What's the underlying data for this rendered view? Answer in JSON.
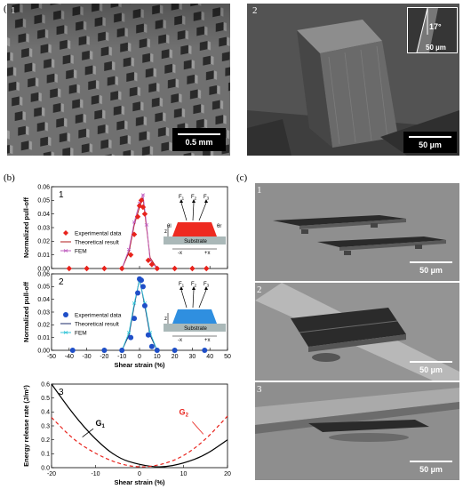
{
  "figure": {
    "panel_a_label": "(a)",
    "panel_b_label": "(b)",
    "panel_c_label": "(c)"
  },
  "panel_a": {
    "img1": {
      "number": "1",
      "scale": "0.5 mm"
    },
    "img2": {
      "number": "2",
      "scale": "50 µm",
      "inset_angle": "17°",
      "inset_scale": "50 µm"
    }
  },
  "panel_c": {
    "img1": {
      "number": "1",
      "scale": "50 µm"
    },
    "img2": {
      "number": "2",
      "scale": "50 µm"
    },
    "img3": {
      "number": "3",
      "scale": "50 µm"
    }
  },
  "chart_data": [
    {
      "type": "scatter",
      "panel": "b1",
      "number": "1",
      "ylabel": "Normalized pull-off",
      "xlim": [
        -50,
        50
      ],
      "ylim": [
        0.0,
        0.06
      ],
      "yticks": [
        "0.00",
        "0.01",
        "0.02",
        "0.03",
        "0.04",
        "0.05",
        "0.06"
      ],
      "series": [
        {
          "name": "Experimental data",
          "color": "#e8231c",
          "x": [
            -40,
            -30,
            -20,
            -10,
            -5,
            -3,
            -1,
            0,
            1,
            2,
            3,
            5,
            7,
            10,
            20,
            30,
            38
          ],
          "y": [
            0.0,
            0.0,
            0.0,
            0.0,
            0.01,
            0.025,
            0.038,
            0.046,
            0.05,
            0.045,
            0.04,
            0.006,
            0.003,
            0.0,
            0.0,
            0.0,
            0.0
          ]
        },
        {
          "name": "Theoretical result",
          "color": "#b01818",
          "x": [
            -10,
            -6,
            -3,
            0,
            2,
            4,
            6,
            10
          ],
          "y": [
            0.0,
            0.012,
            0.032,
            0.045,
            0.052,
            0.03,
            0.008,
            0.0
          ]
        },
        {
          "name": "FEM",
          "color": "#c060c0",
          "x": [
            -10,
            -6,
            -3,
            0,
            2,
            4,
            6,
            10
          ],
          "y": [
            0.0,
            0.014,
            0.034,
            0.048,
            0.054,
            0.032,
            0.006,
            0.0
          ]
        }
      ],
      "inset": {
        "forces": [
          "F1",
          "F2",
          "F3"
        ],
        "substrate": "Substrate",
        "z": "z",
        "neg_x": "-x",
        "pos_x": "+x",
        "theta_l": "θl",
        "theta_r": "θr"
      }
    },
    {
      "type": "scatter",
      "panel": "b2",
      "number": "2",
      "ylabel": "Normalized pull-off",
      "xlabel": "Shear strain (%)",
      "xlim": [
        -50,
        50
      ],
      "xticks": [
        "-50",
        "-40",
        "-30",
        "-20",
        "-10",
        "0",
        "10",
        "20",
        "30",
        "40",
        "50"
      ],
      "ylim": [
        0.0,
        0.06
      ],
      "yticks": [
        "0.00",
        "0.01",
        "0.02",
        "0.03",
        "0.04",
        "0.05",
        "0.06"
      ],
      "series": [
        {
          "name": "Experimental data",
          "color": "#1f4fc8",
          "x": [
            -38,
            -20,
            -10,
            -5,
            -3,
            -1,
            0,
            1,
            2,
            3,
            5,
            7,
            10,
            20,
            37
          ],
          "y": [
            0.0,
            0.0,
            0.0,
            0.01,
            0.025,
            0.045,
            0.056,
            0.055,
            0.05,
            0.035,
            0.012,
            0.003,
            0.0,
            0.0,
            0.0
          ]
        },
        {
          "name": "Theoretical result",
          "color": "#1a2a6a",
          "x": [
            -10,
            -6,
            -3,
            0,
            3,
            6,
            10
          ],
          "y": [
            0.0,
            0.012,
            0.035,
            0.056,
            0.035,
            0.012,
            0.0
          ]
        },
        {
          "name": "FEM",
          "color": "#35c6d8",
          "x": [
            -10,
            -6,
            -3,
            0,
            3,
            6,
            10
          ],
          "y": [
            0.0,
            0.014,
            0.037,
            0.055,
            0.037,
            0.014,
            0.0
          ]
        }
      ],
      "inset": {
        "forces": [
          "F1",
          "F2",
          "F3"
        ],
        "substrate": "Substrate",
        "z": "z",
        "neg_x": "-x",
        "pos_x": "+x"
      }
    },
    {
      "type": "line",
      "panel": "b3",
      "number": "3",
      "ylabel": "Energy release rate (J/m²)",
      "xlabel": "Shear strain (%)",
      "xlim": [
        -20,
        20
      ],
      "xticks": [
        "-20",
        "-10",
        "0",
        "10",
        "20"
      ],
      "ylim": [
        0.0,
        0.6
      ],
      "yticks": [
        "0.0",
        "0.1",
        "0.2",
        "0.3",
        "0.4",
        "0.5",
        "0.6"
      ],
      "series": [
        {
          "name": "G1",
          "color": "#000000",
          "dash": false,
          "x": [
            -20,
            -15,
            -10,
            -5,
            0,
            5,
            10,
            15,
            20
          ],
          "y": [
            0.6,
            0.38,
            0.2,
            0.07,
            0.02,
            0.0,
            0.03,
            0.09,
            0.2
          ]
        },
        {
          "name": "G2",
          "color": "#e8231c",
          "dash": true,
          "x": [
            -20,
            -15,
            -10,
            -5,
            0,
            5,
            10,
            15,
            20
          ],
          "y": [
            0.36,
            0.2,
            0.1,
            0.03,
            0.0,
            0.02,
            0.08,
            0.2,
            0.37
          ]
        }
      ]
    }
  ]
}
